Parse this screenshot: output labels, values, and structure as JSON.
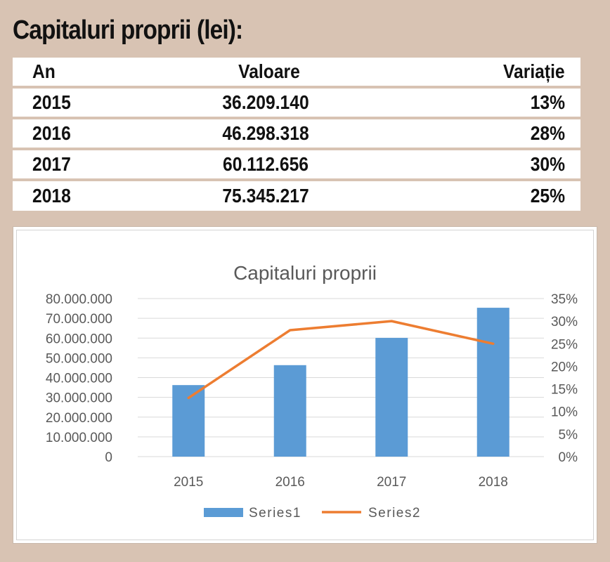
{
  "page": {
    "title": "Capitaluri proprii (lei):"
  },
  "table": {
    "headers": [
      "An",
      "Valoare",
      "Variație"
    ],
    "rows": [
      {
        "year": "2015",
        "value": "36.209.140",
        "change": "13%"
      },
      {
        "year": "2016",
        "value": "46.298.318",
        "change": "28%"
      },
      {
        "year": "2017",
        "value": "60.112.656",
        "change": "30%"
      },
      {
        "year": "2018",
        "value": "75.345.217",
        "change": "25%"
      }
    ]
  },
  "chart_data": {
    "type": "bar",
    "title": "Capitaluri proprii",
    "categories": [
      "2015",
      "2016",
      "2017",
      "2018"
    ],
    "series": [
      {
        "name": "Series1",
        "type": "bar",
        "axis": "left",
        "color": "#5b9bd5",
        "values": [
          36209140,
          46298318,
          60112656,
          75345217
        ]
      },
      {
        "name": "Series2",
        "type": "line",
        "axis": "right",
        "color": "#ed7d31",
        "values": [
          0.13,
          0.28,
          0.3,
          0.25
        ]
      }
    ],
    "y_left": {
      "min": 0,
      "max": 80000000,
      "ticks": [
        "0",
        "10.000.000",
        "20.000.000",
        "30.000.000",
        "40.000.000",
        "50.000.000",
        "60.000.000",
        "70.000.000",
        "80.000.000"
      ]
    },
    "y_right": {
      "min": 0,
      "max": 0.35,
      "ticks": [
        "0%",
        "5%",
        "10%",
        "15%",
        "20%",
        "25%",
        "30%",
        "35%"
      ]
    },
    "grid": true,
    "legend": "bottom"
  }
}
